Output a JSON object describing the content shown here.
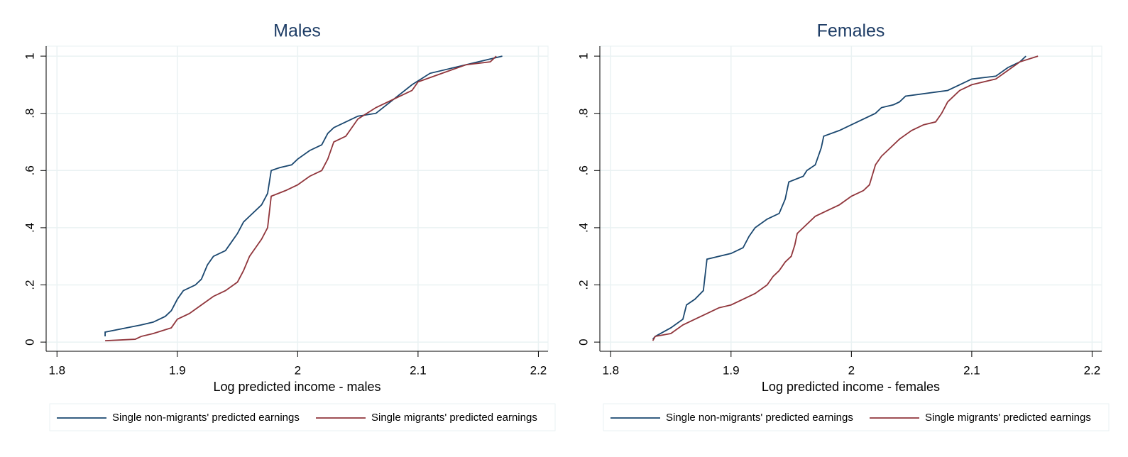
{
  "chart_data": [
    {
      "type": "line",
      "title": "Males",
      "x_label": "Log predicted income - males",
      "xlim": [
        1.791,
        2.208
      ],
      "xticks": [
        1.8,
        1.9,
        2,
        2.1,
        2.2
      ],
      "ylim": [
        -0.032,
        1.035
      ],
      "yticks": [
        0,
        {
          "value": 0.2,
          "label": ".2"
        },
        {
          "value": 0.4,
          "label": ".4"
        },
        {
          "value": 0.6,
          "label": ".6"
        },
        {
          "value": 0.8,
          "label": ".8"
        },
        1
      ],
      "grid": true,
      "legend": "bottom",
      "series": [
        {
          "name": "Single non-migrants' predicted earnings",
          "color": "#1a476f",
          "x": [
            1.84,
            1.84,
            1.87,
            1.88,
            1.89,
            1.895,
            1.9,
            1.905,
            1.915,
            1.92,
            1.925,
            1.93,
            1.94,
            1.945,
            1.95,
            1.955,
            1.96,
            1.97,
            1.975,
            1.978,
            1.985,
            1.995,
            2.0,
            2.01,
            2.02,
            2.025,
            2.03,
            2.04,
            2.05,
            2.065,
            2.08,
            2.095,
            2.11,
            2.13,
            2.15,
            2.17
          ],
          "values": [
            0.02,
            0.035,
            0.06,
            0.07,
            0.09,
            0.11,
            0.15,
            0.18,
            0.2,
            0.22,
            0.27,
            0.3,
            0.32,
            0.35,
            0.38,
            0.42,
            0.44,
            0.48,
            0.52,
            0.6,
            0.61,
            0.62,
            0.64,
            0.67,
            0.69,
            0.73,
            0.75,
            0.77,
            0.79,
            0.8,
            0.85,
            0.9,
            0.94,
            0.96,
            0.98,
            1
          ]
        },
        {
          "name": "Single migrants' predicted earnings",
          "color": "#90353b",
          "x": [
            1.84,
            1.865,
            1.87,
            1.88,
            1.895,
            1.9,
            1.91,
            1.92,
            1.93,
            1.94,
            1.95,
            1.955,
            1.96,
            1.965,
            1.97,
            1.975,
            1.978,
            1.99,
            2.0,
            2.01,
            2.02,
            2.025,
            2.03,
            2.04,
            2.045,
            2.05,
            2.065,
            2.08,
            2.095,
            2.1,
            2.12,
            2.14,
            2.16,
            2.165
          ],
          "values": [
            0.005,
            0.01,
            0.02,
            0.03,
            0.05,
            0.08,
            0.1,
            0.13,
            0.16,
            0.18,
            0.21,
            0.25,
            0.3,
            0.33,
            0.36,
            0.4,
            0.51,
            0.53,
            0.55,
            0.58,
            0.6,
            0.64,
            0.7,
            0.72,
            0.75,
            0.78,
            0.82,
            0.85,
            0.88,
            0.91,
            0.94,
            0.97,
            0.98,
            1
          ]
        }
      ]
    },
    {
      "type": "line",
      "title": "Females",
      "x_label": "Log predicted income - females",
      "xlim": [
        1.791,
        2.208
      ],
      "xticks": [
        1.8,
        1.9,
        2,
        2.1,
        2.2
      ],
      "ylim": [
        -0.032,
        1.035
      ],
      "yticks": [
        0,
        {
          "value": 0.2,
          "label": ".2"
        },
        {
          "value": 0.4,
          "label": ".4"
        },
        {
          "value": 0.6,
          "label": ".6"
        },
        {
          "value": 0.8,
          "label": ".8"
        },
        1
      ],
      "grid": true,
      "legend": "bottom",
      "series": [
        {
          "name": "Single non-migrants' predicted earnings",
          "color": "#1a476f",
          "x": [
            1.835,
            1.837,
            1.85,
            1.86,
            1.863,
            1.87,
            1.877,
            1.88,
            1.9,
            1.91,
            1.915,
            1.92,
            1.93,
            1.94,
            1.945,
            1.948,
            1.96,
            1.963,
            1.97,
            1.975,
            1.977,
            1.99,
            2.0,
            2.02,
            2.025,
            2.035,
            2.04,
            2.045,
            2.08,
            2.09,
            2.1,
            2.12,
            2.13,
            2.14,
            2.145
          ],
          "values": [
            0.01,
            0.02,
            0.05,
            0.08,
            0.13,
            0.15,
            0.18,
            0.29,
            0.31,
            0.33,
            0.37,
            0.4,
            0.43,
            0.45,
            0.5,
            0.56,
            0.58,
            0.6,
            0.62,
            0.68,
            0.72,
            0.74,
            0.76,
            0.8,
            0.82,
            0.83,
            0.84,
            0.86,
            0.88,
            0.9,
            0.92,
            0.93,
            0.96,
            0.98,
            1
          ]
        },
        {
          "name": "Single migrants' predicted earnings",
          "color": "#90353b",
          "x": [
            1.835,
            1.837,
            1.85,
            1.86,
            1.87,
            1.88,
            1.89,
            1.9,
            1.91,
            1.92,
            1.93,
            1.935,
            1.94,
            1.945,
            1.95,
            1.953,
            1.955,
            1.96,
            1.97,
            1.98,
            1.99,
            2.0,
            2.01,
            2.015,
            2.02,
            2.025,
            2.03,
            2.04,
            2.05,
            2.06,
            2.07,
            2.075,
            2.08,
            2.09,
            2.1,
            2.12,
            2.13,
            2.14,
            2.155
          ],
          "values": [
            0.005,
            0.02,
            0.03,
            0.06,
            0.08,
            0.1,
            0.12,
            0.13,
            0.15,
            0.17,
            0.2,
            0.23,
            0.25,
            0.28,
            0.3,
            0.34,
            0.38,
            0.4,
            0.44,
            0.46,
            0.48,
            0.51,
            0.53,
            0.55,
            0.62,
            0.65,
            0.67,
            0.71,
            0.74,
            0.76,
            0.77,
            0.8,
            0.84,
            0.88,
            0.9,
            0.92,
            0.95,
            0.98,
            1
          ]
        }
      ]
    }
  ]
}
